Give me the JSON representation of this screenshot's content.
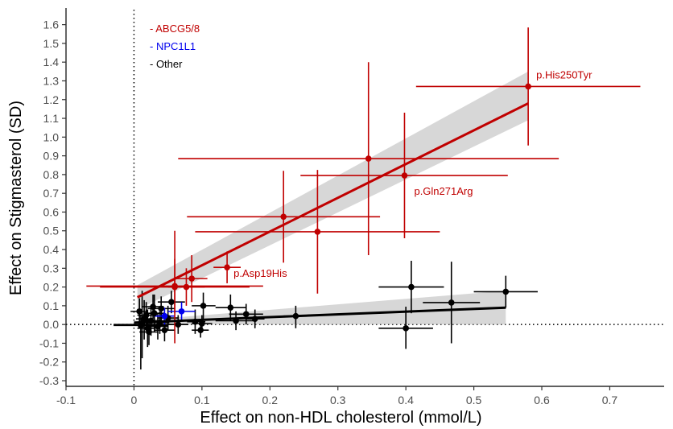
{
  "chart_data": {
    "type": "scatter",
    "xlabel": "Effect on non-HDL cholesterol (mmol/L)",
    "ylabel": "Effect on Stigmasterol (SD)",
    "xlim": [
      -0.1,
      0.78
    ],
    "ylim": [
      -0.33,
      1.68
    ],
    "x_ticks": [
      -0.1,
      0,
      0.1,
      0.2,
      0.3,
      0.4,
      0.5,
      0.6,
      0.7
    ],
    "x_tick_labels": [
      "-0.1",
      "0",
      "0.1",
      "0.2",
      "0.3",
      "0.4",
      "0.5",
      "0.6",
      "0.7"
    ],
    "y_ticks": [
      -0.3,
      -0.2,
      -0.1,
      0,
      0.1,
      0.2,
      0.3,
      0.4,
      0.5,
      0.6,
      0.7,
      0.8,
      0.9,
      1.0,
      1.1,
      1.2,
      1.3,
      1.4,
      1.5,
      1.6
    ],
    "y_tick_labels": [
      "-0.3",
      "-0.2",
      "-0.1",
      "0.0",
      "0.1",
      "0.2",
      "0.3",
      "0.4",
      "0.5",
      "0.6",
      "0.7",
      "0.8",
      "0.9",
      "1.0",
      "1.1",
      "1.2",
      "1.3",
      "1.4",
      "1.5",
      "1.6"
    ],
    "reference_lines": {
      "x": 0,
      "y": 0,
      "style": "dotted"
    },
    "legend_placement": "top-left",
    "legend": [
      {
        "label": "- ABCG5/8",
        "color": "#c00000"
      },
      {
        "label": "- NPC1L1",
        "color": "#0000ee"
      },
      {
        "label": "- Other",
        "color": "#000000"
      }
    ],
    "series": [
      {
        "name": "ABCG5/8",
        "color": "#c00000",
        "points": [
          {
            "x": 0.58,
            "y": 1.27,
            "xlo": 0.415,
            "xhi": 0.745,
            "ylo": 0.955,
            "yhi": 1.585,
            "label": "p.His250Tyr"
          },
          {
            "x": 0.345,
            "y": 0.885,
            "xlo": 0.065,
            "xhi": 0.625,
            "ylo": 0.37,
            "yhi": 1.4
          },
          {
            "x": 0.398,
            "y": 0.795,
            "xlo": 0.245,
            "xhi": 0.55,
            "ylo": 0.46,
            "yhi": 1.13,
            "label": "p.Gln271Arg"
          },
          {
            "x": 0.22,
            "y": 0.575,
            "xlo": 0.078,
            "xhi": 0.362,
            "ylo": 0.33,
            "yhi": 0.82
          },
          {
            "x": 0.27,
            "y": 0.495,
            "xlo": 0.09,
            "xhi": 0.45,
            "ylo": 0.165,
            "yhi": 0.825
          },
          {
            "x": 0.137,
            "y": 0.305,
            "xlo": 0.117,
            "xhi": 0.157,
            "ylo": 0.22,
            "yhi": 0.39,
            "label": "p.Asp19His"
          },
          {
            "x": 0.085,
            "y": 0.245,
            "xlo": 0.062,
            "xhi": 0.108,
            "ylo": 0.12,
            "yhi": 0.37
          },
          {
            "x": 0.077,
            "y": 0.2,
            "xlo": 0.05,
            "xhi": 0.104,
            "ylo": 0.1,
            "yhi": 0.3
          },
          {
            "x": 0.06,
            "y": 0.205,
            "xlo": -0.07,
            "xhi": 0.19,
            "ylo": 0.06,
            "yhi": 0.35
          },
          {
            "x": 0.06,
            "y": 0.2,
            "xlo": -0.05,
            "xhi": 0.17,
            "ylo": -0.1,
            "yhi": 0.5
          }
        ],
        "fit": {
          "x0": 0.005,
          "y0": 0.145,
          "x1": 0.58,
          "y1": 1.18,
          "band_lo": [
            0.08,
            1.09
          ],
          "band_hi": [
            0.21,
            1.35
          ]
        }
      },
      {
        "name": "NPC1L1",
        "color": "#0000ee",
        "points": [
          {
            "x": 0.07,
            "y": 0.07,
            "xlo": 0.05,
            "xhi": 0.09,
            "ylo": 0.02,
            "yhi": 0.12
          },
          {
            "x": 0.045,
            "y": 0.045,
            "xlo": 0.03,
            "xhi": 0.06,
            "ylo": 0.0,
            "yhi": 0.09
          }
        ]
      },
      {
        "name": "Other",
        "color": "#000000",
        "points": [
          {
            "x": 0.547,
            "y": 0.175,
            "xlo": 0.5,
            "xhi": 0.594,
            "ylo": 0.09,
            "yhi": 0.26
          },
          {
            "x": 0.467,
            "y": 0.117,
            "xlo": 0.425,
            "xhi": 0.509,
            "ylo": -0.1,
            "yhi": 0.335
          },
          {
            "x": 0.408,
            "y": 0.2,
            "xlo": 0.36,
            "xhi": 0.456,
            "ylo": 0.06,
            "yhi": 0.34
          },
          {
            "x": 0.4,
            "y": -0.02,
            "xlo": 0.36,
            "xhi": 0.44,
            "ylo": -0.13,
            "yhi": 0.095
          },
          {
            "x": 0.238,
            "y": 0.045,
            "xlo": 0.22,
            "xhi": 0.256,
            "ylo": -0.02,
            "yhi": 0.1
          },
          {
            "x": 0.165,
            "y": 0.055,
            "xlo": 0.14,
            "xhi": 0.19,
            "ylo": 0.0,
            "yhi": 0.11
          },
          {
            "x": 0.142,
            "y": 0.09,
            "xlo": 0.12,
            "xhi": 0.165,
            "ylo": 0.02,
            "yhi": 0.16
          },
          {
            "x": 0.15,
            "y": 0.02,
            "xlo": 0.12,
            "xhi": 0.18,
            "ylo": -0.03,
            "yhi": 0.07
          },
          {
            "x": 0.102,
            "y": 0.1,
            "xlo": 0.085,
            "xhi": 0.12,
            "ylo": 0.03,
            "yhi": 0.17
          },
          {
            "x": 0.098,
            "y": -0.03,
            "xlo": 0.085,
            "xhi": 0.11,
            "ylo": -0.07,
            "yhi": 0.01
          },
          {
            "x": 0.1,
            "y": 0.005,
            "xlo": 0.085,
            "xhi": 0.115,
            "ylo": -0.04,
            "yhi": 0.05
          },
          {
            "x": 0.09,
            "y": 0.015,
            "xlo": 0.078,
            "xhi": 0.105,
            "ylo": -0.05,
            "yhi": 0.08
          },
          {
            "x": 0.178,
            "y": 0.03,
            "xlo": 0.165,
            "xhi": 0.192,
            "ylo": -0.02,
            "yhi": 0.08
          },
          {
            "x": 0.055,
            "y": 0.12,
            "xlo": 0.035,
            "xhi": 0.075,
            "ylo": 0.06,
            "yhi": 0.18
          },
          {
            "x": 0.05,
            "y": 0.035,
            "xlo": 0.035,
            "xhi": 0.065,
            "ylo": -0.03,
            "yhi": 0.1
          },
          {
            "x": 0.04,
            "y": 0.085,
            "xlo": 0.02,
            "xhi": 0.06,
            "ylo": 0.02,
            "yhi": 0.15
          },
          {
            "x": 0.035,
            "y": -0.01,
            "xlo": 0.02,
            "xhi": 0.05,
            "ylo": -0.08,
            "yhi": 0.06
          },
          {
            "x": 0.03,
            "y": 0.06,
            "xlo": 0.015,
            "xhi": 0.045,
            "ylo": -0.04,
            "yhi": 0.16
          },
          {
            "x": 0.025,
            "y": 0.02,
            "xlo": 0.01,
            "xhi": 0.04,
            "ylo": -0.06,
            "yhi": 0.1
          },
          {
            "x": 0.02,
            "y": -0.02,
            "xlo": 0.005,
            "xhi": 0.035,
            "ylo": -0.12,
            "yhi": 0.08
          },
          {
            "x": 0.015,
            "y": 0.03,
            "xlo": 0.003,
            "xhi": 0.028,
            "ylo": -0.08,
            "yhi": 0.13
          },
          {
            "x": 0.012,
            "y": 0.0,
            "xlo": -0.03,
            "xhi": 0.054,
            "ylo": -0.18,
            "yhi": 0.18
          },
          {
            "x": 0.01,
            "y": -0.005,
            "xlo": -0.03,
            "xhi": 0.05,
            "ylo": -0.24,
            "yhi": 0.05
          },
          {
            "x": 0.018,
            "y": 0.05,
            "xlo": 0.005,
            "xhi": 0.03,
            "ylo": -0.02,
            "yhi": 0.12
          },
          {
            "x": 0.045,
            "y": -0.03,
            "xlo": 0.03,
            "xhi": 0.06,
            "ylo": -0.09,
            "yhi": 0.03
          },
          {
            "x": 0.028,
            "y": 0.095,
            "xlo": 0.012,
            "xhi": 0.044,
            "ylo": 0.03,
            "yhi": 0.16
          },
          {
            "x": 0.022,
            "y": -0.04,
            "xlo": 0.008,
            "xhi": 0.036,
            "ylo": -0.11,
            "yhi": 0.03
          },
          {
            "x": 0.038,
            "y": 0.01,
            "xlo": 0.025,
            "xhi": 0.052,
            "ylo": -0.05,
            "yhi": 0.07
          },
          {
            "x": 0.065,
            "y": 0.0,
            "xlo": 0.05,
            "xhi": 0.08,
            "ylo": -0.05,
            "yhi": 0.05
          },
          {
            "x": 0.008,
            "y": 0.07,
            "xlo": -0.005,
            "xhi": 0.02,
            "ylo": 0.0,
            "yhi": 0.14
          }
        ],
        "fit": {
          "x0": 0.0,
          "y0": 0.01,
          "x1": 0.547,
          "y1": 0.09,
          "band_lo": [
            0.0,
            0.0
          ],
          "band_hi": [
            0.02,
            0.18
          ]
        }
      }
    ]
  }
}
